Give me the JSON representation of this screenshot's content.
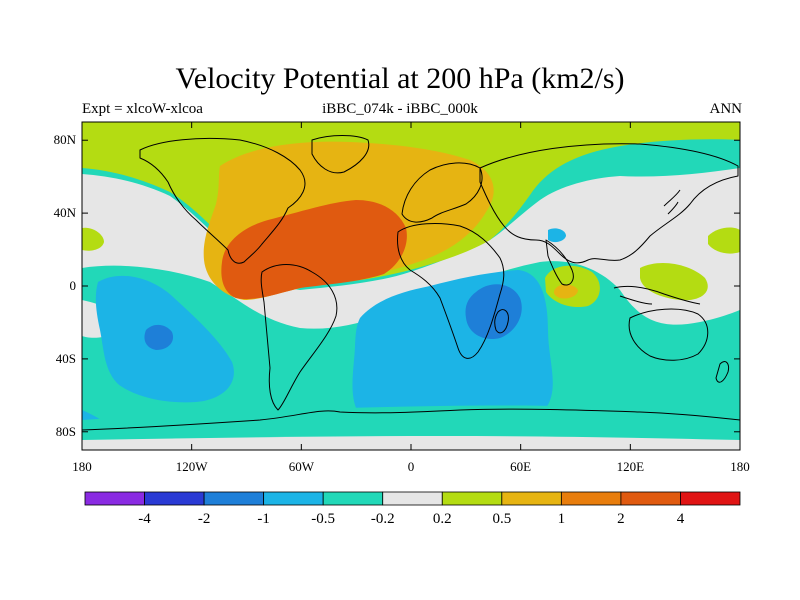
{
  "title": "Velocity Potential at 200 hPa (km2/s)",
  "subtitle_left": "Expt = xlcoW-xlcoa",
  "subtitle_center": "iBBC_074k - iBBC_000k",
  "subtitle_right": "ANN",
  "lat_ticks": [
    {
      "label": "80N",
      "lat": 80
    },
    {
      "label": "40N",
      "lat": 40
    },
    {
      "label": "0",
      "lat": 0
    },
    {
      "label": "40S",
      "lat": -40
    },
    {
      "label": "80S",
      "lat": -80
    }
  ],
  "lon_ticks": [
    {
      "label": "180",
      "lon": -180
    },
    {
      "label": "120W",
      "lon": -120
    },
    {
      "label": "60W",
      "lon": -60
    },
    {
      "label": "0",
      "lon": 0
    },
    {
      "label": "60E",
      "lon": 60
    },
    {
      "label": "120E",
      "lon": 120
    },
    {
      "label": "180",
      "lon": 180
    }
  ],
  "colorbar": {
    "colors": [
      "#8a2be2",
      "#2a3ad4",
      "#1e7fd8",
      "#1cb4e6",
      "#22d8b8",
      "#e6e6e6",
      "#b4dc12",
      "#e6b412",
      "#e87d0c",
      "#e05a10",
      "#e01414"
    ],
    "labels": [
      "-4",
      "-2",
      "-1",
      "-0.5",
      "-0.2",
      "0.2",
      "0.5",
      "1",
      "2",
      "4"
    ]
  },
  "colors": {
    "land_outline": "#000000",
    "frame": "#000000"
  }
}
